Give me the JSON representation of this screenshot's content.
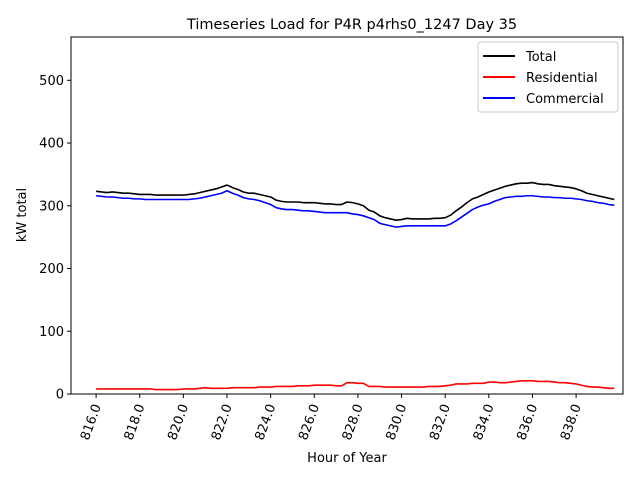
{
  "chart_data": {
    "type": "line",
    "title": "Timeseries Load for P4R p4rhs0_1247  Day 35",
    "xlabel": "Hour of Year",
    "ylabel": "kW total",
    "xlim": [
      814.85,
      840.15
    ],
    "ylim": [
      0,
      569
    ],
    "x_ticks": [
      816.0,
      818.0,
      820.0,
      822.0,
      824.0,
      826.0,
      828.0,
      830.0,
      832.0,
      834.0,
      836.0,
      838.0
    ],
    "x_tick_labels": [
      "816.0",
      "818.0",
      "820.0",
      "822.0",
      "824.0",
      "826.0",
      "828.0",
      "830.0",
      "832.0",
      "834.0",
      "836.0",
      "838.0"
    ],
    "y_ticks": [
      0,
      100,
      200,
      300,
      400,
      500
    ],
    "y_tick_labels": [
      "0",
      "100",
      "200",
      "300",
      "400",
      "500"
    ],
    "grid": false,
    "legend_position": "top-right",
    "x": [
      816.0,
      816.25,
      816.5,
      816.75,
      817.0,
      817.25,
      817.5,
      817.75,
      818.0,
      818.25,
      818.5,
      818.75,
      819.0,
      819.25,
      819.5,
      819.75,
      820.0,
      820.25,
      820.5,
      820.75,
      821.0,
      821.25,
      821.5,
      821.75,
      822.0,
      822.25,
      822.5,
      822.75,
      823.0,
      823.25,
      823.5,
      823.75,
      824.0,
      824.25,
      824.5,
      824.75,
      825.0,
      825.25,
      825.5,
      825.75,
      826.0,
      826.25,
      826.5,
      826.75,
      827.0,
      827.25,
      827.5,
      827.75,
      828.0,
      828.25,
      828.5,
      828.75,
      829.0,
      829.25,
      829.5,
      829.75,
      830.0,
      830.25,
      830.5,
      830.75,
      831.0,
      831.25,
      831.5,
      831.75,
      832.0,
      832.25,
      832.5,
      832.75,
      833.0,
      833.25,
      833.5,
      833.75,
      834.0,
      834.25,
      834.5,
      834.75,
      835.0,
      835.25,
      835.5,
      835.75,
      836.0,
      836.25,
      836.5,
      836.75,
      837.0,
      837.25,
      837.5,
      837.75,
      838.0,
      838.25,
      838.5,
      838.75,
      839.0,
      839.25,
      839.5,
      839.75
    ],
    "series": [
      {
        "name": "Total",
        "color": "#000000",
        "values": [
          323,
          322,
          321,
          322,
          321,
          320,
          320,
          319,
          318,
          318,
          318,
          317,
          317,
          317,
          317,
          317,
          317,
          318,
          319,
          321,
          323,
          325,
          327,
          330,
          333,
          329,
          326,
          322,
          320,
          320,
          318,
          316,
          314,
          309,
          307,
          306,
          306,
          306,
          305,
          305,
          305,
          304,
          303,
          303,
          302,
          302,
          306,
          305,
          303,
          300,
          293,
          290,
          284,
          281,
          279,
          277,
          278,
          280,
          279,
          279,
          279,
          279,
          280,
          280,
          281,
          285,
          292,
          298,
          305,
          311,
          314,
          318,
          322,
          325,
          328,
          331,
          333,
          335,
          336,
          336,
          337,
          335,
          334,
          334,
          332,
          331,
          330,
          329,
          327,
          324,
          320,
          318,
          316,
          314,
          312,
          310
        ]
      },
      {
        "name": "Residential",
        "color": "#ff0000",
        "values": [
          8,
          8,
          8,
          8,
          8,
          8,
          8,
          8,
          8,
          8,
          8,
          7,
          7,
          7,
          7,
          7,
          8,
          8,
          8,
          9,
          10,
          9,
          9,
          9,
          9,
          10,
          10,
          10,
          10,
          10,
          11,
          11,
          11,
          12,
          12,
          12,
          12,
          13,
          13,
          13,
          14,
          14,
          14,
          14,
          13,
          13,
          18,
          18,
          17,
          17,
          12,
          12,
          12,
          11,
          11,
          11,
          11,
          11,
          11,
          11,
          11,
          12,
          12,
          12,
          13,
          14,
          16,
          16,
          16,
          17,
          17,
          17,
          19,
          19,
          18,
          18,
          19,
          20,
          21,
          21,
          21,
          20,
          20,
          20,
          19,
          18,
          18,
          17,
          16,
          14,
          12,
          11,
          11,
          10,
          9,
          9
        ]
      },
      {
        "name": "Commercial",
        "color": "#0000ff",
        "values": [
          316,
          315,
          314,
          314,
          313,
          312,
          312,
          311,
          311,
          310,
          310,
          310,
          310,
          310,
          310,
          310,
          310,
          310,
          311,
          312,
          314,
          316,
          318,
          320,
          324,
          320,
          317,
          313,
          311,
          310,
          308,
          305,
          302,
          297,
          295,
          294,
          294,
          293,
          292,
          292,
          291,
          290,
          289,
          289,
          289,
          289,
          289,
          287,
          286,
          284,
          281,
          278,
          272,
          270,
          268,
          266,
          267,
          268,
          268,
          268,
          268,
          268,
          268,
          268,
          268,
          271,
          276,
          282,
          288,
          294,
          298,
          301,
          303,
          307,
          310,
          313,
          314,
          315,
          315,
          316,
          316,
          315,
          314,
          314,
          313,
          313,
          312,
          312,
          311,
          310,
          308,
          307,
          305,
          304,
          302,
          301
        ]
      }
    ]
  }
}
